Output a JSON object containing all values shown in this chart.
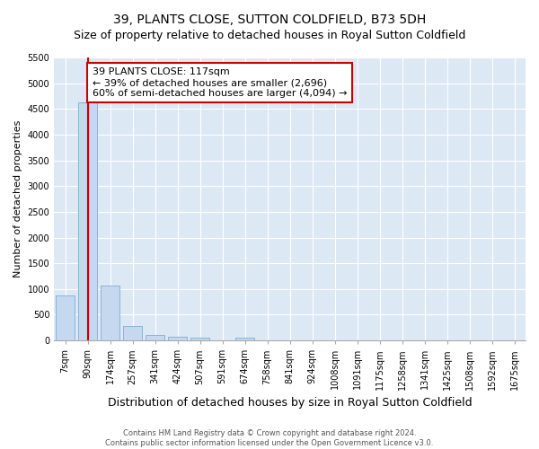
{
  "title": "39, PLANTS CLOSE, SUTTON COLDFIELD, B73 5DH",
  "subtitle": "Size of property relative to detached houses in Royal Sutton Coldfield",
  "xlabel": "Distribution of detached houses by size in Royal Sutton Coldfield",
  "ylabel": "Number of detached properties",
  "footer_line1": "Contains HM Land Registry data © Crown copyright and database right 2024.",
  "footer_line2": "Contains public sector information licensed under the Open Government Licence v3.0.",
  "categories": [
    "7sqm",
    "90sqm",
    "174sqm",
    "257sqm",
    "341sqm",
    "424sqm",
    "507sqm",
    "591sqm",
    "674sqm",
    "758sqm",
    "841sqm",
    "924sqm",
    "1008sqm",
    "1091sqm",
    "1175sqm",
    "1258sqm",
    "1341sqm",
    "1425sqm",
    "1508sqm",
    "1592sqm",
    "1675sqm"
  ],
  "bar_values": [
    870,
    4620,
    1060,
    290,
    100,
    70,
    50,
    0,
    55,
    0,
    0,
    0,
    0,
    0,
    0,
    0,
    0,
    0,
    0,
    0,
    0
  ],
  "bar_color": "#c5d8ef",
  "bar_edge_color": "#7aadd4",
  "vline_x_index": 1,
  "vline_color": "#cc0000",
  "annotation_text": "39 PLANTS CLOSE: 117sqm\n← 39% of detached houses are smaller (2,696)\n60% of semi-detached houses are larger (4,094) →",
  "annotation_box_facecolor": "#ffffff",
  "annotation_box_edgecolor": "#cc0000",
  "ylim_max": 5500,
  "yticks": [
    0,
    500,
    1000,
    1500,
    2000,
    2500,
    3000,
    3500,
    4000,
    4500,
    5000,
    5500
  ],
  "plot_bg_color": "#dde8f5",
  "grid_color": "#ffffff",
  "title_fontsize": 10,
  "subtitle_fontsize": 9,
  "ylabel_fontsize": 8,
  "xlabel_fontsize": 9,
  "tick_fontsize": 7,
  "footer_fontsize": 6,
  "annot_fontsize": 8
}
